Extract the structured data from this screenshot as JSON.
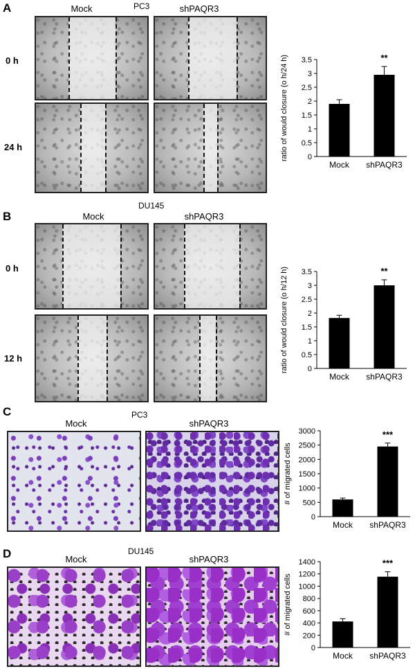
{
  "panels": [
    {
      "letter": "A",
      "title": "PC3",
      "columns": [
        "Mock",
        "shPAQR3"
      ],
      "rows": [
        "0 h",
        "24 h"
      ]
    },
    {
      "letter": "B",
      "title": "DU145",
      "columns": [
        "Mock",
        "shPAQR3"
      ],
      "rows": [
        "0 h",
        "12 h"
      ]
    },
    {
      "letter": "C",
      "title": "PC3",
      "columns": [
        "Mock",
        "shPAQR3"
      ]
    },
    {
      "letter": "D",
      "title": "DU145",
      "columns": [
        "Mock",
        "shPAQR3"
      ]
    }
  ],
  "chart_data": [
    {
      "type": "bar",
      "categories": [
        "Mock",
        "shPAQR3"
      ],
      "values": [
        1.9,
        2.95
      ],
      "errors": [
        0.15,
        0.3
      ],
      "significance": [
        "",
        "**"
      ],
      "ylabel": "ratio of would closure (o h/24 h)",
      "ylim": [
        0,
        3.5
      ],
      "ticks": [
        "0",
        "0.5",
        "1",
        "1.5",
        "2",
        "2.5",
        "3",
        "3.5"
      ],
      "tick_values": [
        0,
        0.5,
        1,
        1.5,
        2,
        2.5,
        3,
        3.5
      ],
      "bar_color": "#000000"
    },
    {
      "type": "bar",
      "categories": [
        "Mock",
        "shPAQR3"
      ],
      "values": [
        1.82,
        3.0
      ],
      "errors": [
        0.1,
        0.2
      ],
      "significance": [
        "",
        "**"
      ],
      "ylabel": "ratio of would closure (o h/12 h)",
      "ylim": [
        0,
        3.5
      ],
      "ticks": [
        "0",
        "0.5",
        "1",
        "1.5",
        "2",
        "2.5",
        "3",
        "3.5"
      ],
      "tick_values": [
        0,
        0.5,
        1,
        1.5,
        2,
        2.5,
        3,
        3.5
      ],
      "bar_color": "#000000"
    },
    {
      "type": "bar",
      "categories": [
        "Mock",
        "shPAQR3"
      ],
      "values": [
        600,
        2450
      ],
      "errors": [
        50,
        120
      ],
      "significance": [
        "",
        "***"
      ],
      "ylabel": "# of migrated cells",
      "ylim": [
        0,
        3000
      ],
      "ticks": [
        "0",
        "500",
        "1000",
        "1500",
        "2000",
        "2500",
        "3000"
      ],
      "tick_values": [
        0,
        500,
        1000,
        1500,
        2000,
        2500,
        3000
      ],
      "bar_color": "#000000"
    },
    {
      "type": "bar",
      "categories": [
        "Mock",
        "shPAQR3"
      ],
      "values": [
        425,
        1155
      ],
      "errors": [
        45,
        80
      ],
      "significance": [
        "",
        "***"
      ],
      "ylabel": "# of migrated cells",
      "ylim": [
        0,
        1400
      ],
      "ticks": [
        "0",
        "200",
        "400",
        "600",
        "800",
        "1000",
        "1200",
        "1400"
      ],
      "tick_values": [
        0,
        200,
        400,
        600,
        800,
        1000,
        1200,
        1400
      ],
      "bar_color": "#000000"
    }
  ]
}
